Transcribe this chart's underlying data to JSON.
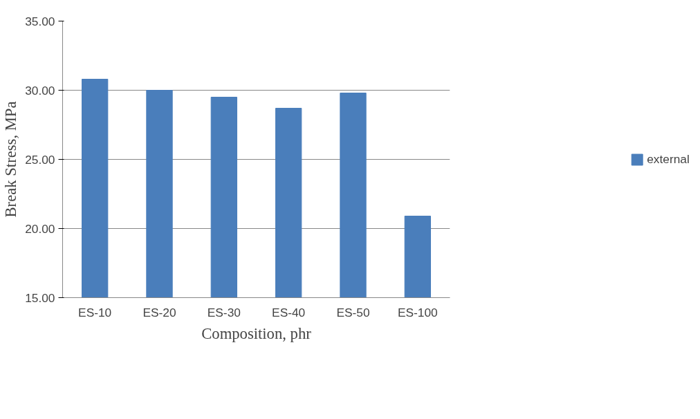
{
  "chart_data": {
    "type": "bar",
    "xlabel": "Composition, phr",
    "ylabel": "Break Stress, MPa",
    "categories": [
      "ES-10",
      "ES-20",
      "ES-30",
      "ES-40",
      "ES-50",
      "ES-100"
    ],
    "series": [
      {
        "name": "external",
        "color": "#4a7ebb",
        "values": [
          30.8,
          30.0,
          29.5,
          28.7,
          29.8,
          20.9
        ]
      }
    ],
    "ylim": [
      15,
      35
    ],
    "yticks": [
      {
        "value": 15,
        "label": "15.00"
      },
      {
        "value": 20,
        "label": "20.00"
      },
      {
        "value": 25,
        "label": "25.00"
      },
      {
        "value": 30,
        "label": "30.00"
      },
      {
        "value": 35,
        "label": "35.00"
      }
    ],
    "grid": "y",
    "legend": "right"
  }
}
